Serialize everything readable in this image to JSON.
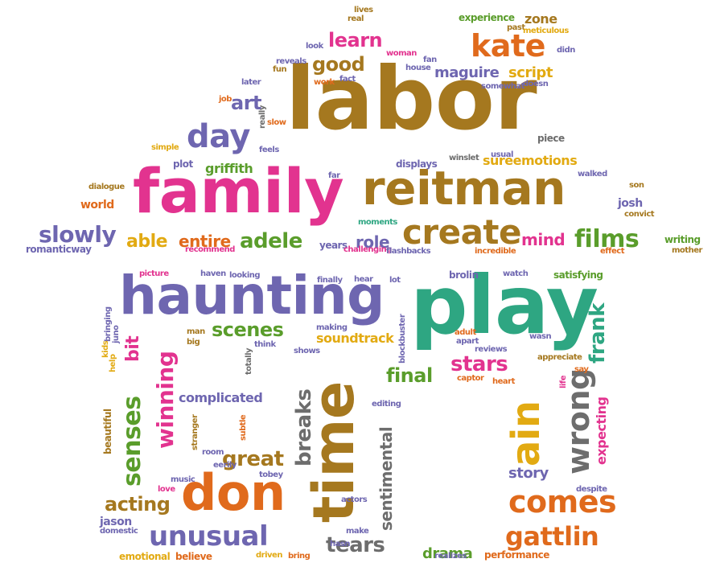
{
  "palette": {
    "brown": "#a5781f",
    "purple": "#6e66b0",
    "pink": "#e2338f",
    "green": "#5a9d2b",
    "orange": "#e06a1c",
    "yellow": "#e2aa12",
    "teal": "#2ea682",
    "gray": "#6d6d6d"
  },
  "words": [
    {
      "text": "labor",
      "color": "brown"
    },
    {
      "text": "family",
      "color": "pink"
    },
    {
      "text": "reitman",
      "color": "brown"
    },
    {
      "text": "play",
      "color": "teal"
    },
    {
      "text": "haunting",
      "color": "purple"
    },
    {
      "text": "time",
      "color": "brown"
    },
    {
      "text": "don",
      "color": "orange"
    },
    {
      "text": "create",
      "color": "brown"
    },
    {
      "text": "kate",
      "color": "orange"
    },
    {
      "text": "day",
      "color": "purple"
    },
    {
      "text": "slowly",
      "color": "purple"
    },
    {
      "text": "films",
      "color": "green"
    },
    {
      "text": "adele",
      "color": "green"
    },
    {
      "text": "entire",
      "color": "orange"
    },
    {
      "text": "able",
      "color": "yellow"
    },
    {
      "text": "role",
      "color": "purple"
    },
    {
      "text": "mind",
      "color": "pink"
    },
    {
      "text": "learn",
      "color": "pink"
    },
    {
      "text": "good",
      "color": "brown"
    },
    {
      "text": "maguire",
      "color": "purple"
    },
    {
      "text": "script",
      "color": "yellow"
    },
    {
      "text": "art",
      "color": "purple"
    },
    {
      "text": "griffith",
      "color": "green"
    },
    {
      "text": "sureemotions",
      "color": "yellow"
    },
    {
      "text": "world",
      "color": "orange"
    },
    {
      "text": "josh",
      "color": "purple"
    },
    {
      "text": "scenes",
      "color": "green"
    },
    {
      "text": "bit",
      "color": "pink"
    },
    {
      "text": "winning",
      "color": "pink"
    },
    {
      "text": "senses",
      "color": "green"
    },
    {
      "text": "soundtrack",
      "color": "yellow"
    },
    {
      "text": "final",
      "color": "green"
    },
    {
      "text": "stars",
      "color": "pink"
    },
    {
      "text": "complicated",
      "color": "purple"
    },
    {
      "text": "breaks",
      "color": "gray"
    },
    {
      "text": "sentimental",
      "color": "gray"
    },
    {
      "text": "great",
      "color": "brown"
    },
    {
      "text": "acting",
      "color": "brown"
    },
    {
      "text": "unusual",
      "color": "purple"
    },
    {
      "text": "tears",
      "color": "gray"
    },
    {
      "text": "drama",
      "color": "green"
    },
    {
      "text": "comes",
      "color": "orange"
    },
    {
      "text": "gattlin",
      "color": "orange"
    },
    {
      "text": "ain",
      "color": "yellow"
    },
    {
      "text": "wrong",
      "color": "gray"
    },
    {
      "text": "frank",
      "color": "teal"
    },
    {
      "text": "expecting",
      "color": "pink"
    },
    {
      "text": "story",
      "color": "purple"
    },
    {
      "text": "beautiful",
      "color": "brown"
    },
    {
      "text": "lives",
      "color": "brown"
    },
    {
      "text": "real",
      "color": "brown"
    },
    {
      "text": "look",
      "color": "purple"
    },
    {
      "text": "woman",
      "color": "pink"
    },
    {
      "text": "reveals",
      "color": "purple"
    },
    {
      "text": "fun",
      "color": "brown"
    },
    {
      "text": "later",
      "color": "purple"
    },
    {
      "text": "work",
      "color": "orange"
    },
    {
      "text": "fact",
      "color": "purple"
    },
    {
      "text": "fan",
      "color": "purple"
    },
    {
      "text": "house",
      "color": "purple"
    },
    {
      "text": "experience",
      "color": "green"
    },
    {
      "text": "zone",
      "color": "brown"
    },
    {
      "text": "past",
      "color": "brown"
    },
    {
      "text": "meticulous",
      "color": "yellow"
    },
    {
      "text": "didn",
      "color": "purple"
    },
    {
      "text": "somewhat",
      "color": "purple"
    },
    {
      "text": "doesn",
      "color": "purple"
    },
    {
      "text": "job",
      "color": "orange"
    },
    {
      "text": "really",
      "color": "gray"
    },
    {
      "text": "slow",
      "color": "orange"
    },
    {
      "text": "piece",
      "color": "gray"
    },
    {
      "text": "simple",
      "color": "yellow"
    },
    {
      "text": "feels",
      "color": "purple"
    },
    {
      "text": "winslet",
      "color": "gray"
    },
    {
      "text": "usual",
      "color": "purple"
    },
    {
      "text": "plot",
      "color": "purple"
    },
    {
      "text": "displays",
      "color": "purple"
    },
    {
      "text": "far",
      "color": "purple"
    },
    {
      "text": "walked",
      "color": "purple"
    },
    {
      "text": "son",
      "color": "brown"
    },
    {
      "text": "dialogue",
      "color": "brown"
    },
    {
      "text": "convict",
      "color": "brown"
    },
    {
      "text": "moments",
      "color": "teal"
    },
    {
      "text": "writing",
      "color": "green"
    },
    {
      "text": "years",
      "color": "purple"
    },
    {
      "text": "challenging",
      "color": "pink"
    },
    {
      "text": "flashbacks",
      "color": "purple"
    },
    {
      "text": "incredible",
      "color": "orange"
    },
    {
      "text": "effect",
      "color": "orange"
    },
    {
      "text": "mother",
      "color": "brown"
    },
    {
      "text": "romanticway",
      "color": "purple"
    },
    {
      "text": "recommend",
      "color": "pink"
    },
    {
      "text": "picture",
      "color": "pink"
    },
    {
      "text": "haven",
      "color": "purple"
    },
    {
      "text": "looking",
      "color": "purple"
    },
    {
      "text": "finally",
      "color": "purple"
    },
    {
      "text": "hear",
      "color": "purple"
    },
    {
      "text": "lot",
      "color": "purple"
    },
    {
      "text": "brolin",
      "color": "purple"
    },
    {
      "text": "watch",
      "color": "purple"
    },
    {
      "text": "satisfying",
      "color": "green"
    },
    {
      "text": "bringing",
      "color": "purple"
    },
    {
      "text": "making",
      "color": "purple"
    },
    {
      "text": "blockbuster",
      "color": "purple"
    },
    {
      "text": "adult",
      "color": "orange"
    },
    {
      "text": "apart",
      "color": "purple"
    },
    {
      "text": "wasn",
      "color": "purple"
    },
    {
      "text": "juno",
      "color": "purple"
    },
    {
      "text": "man",
      "color": "brown"
    },
    {
      "text": "big",
      "color": "brown"
    },
    {
      "text": "kids",
      "color": "yellow"
    },
    {
      "text": "help",
      "color": "yellow"
    },
    {
      "text": "think",
      "color": "purple"
    },
    {
      "text": "shows",
      "color": "purple"
    },
    {
      "text": "totally",
      "color": "gray"
    },
    {
      "text": "reviews",
      "color": "purple"
    },
    {
      "text": "appreciate",
      "color": "brown"
    },
    {
      "text": "say",
      "color": "orange"
    },
    {
      "text": "life",
      "color": "pink"
    },
    {
      "text": "captor",
      "color": "orange"
    },
    {
      "text": "heart",
      "color": "orange"
    },
    {
      "text": "editing",
      "color": "purple"
    },
    {
      "text": "stranger",
      "color": "brown"
    },
    {
      "text": "subtle",
      "color": "orange"
    },
    {
      "text": "room",
      "color": "purple"
    },
    {
      "text": "eerily",
      "color": "purple"
    },
    {
      "text": "tobey",
      "color": "purple"
    },
    {
      "text": "music",
      "color": "purple"
    },
    {
      "text": "love",
      "color": "pink"
    },
    {
      "text": "despite",
      "color": "purple"
    },
    {
      "text": "actors",
      "color": "purple"
    },
    {
      "text": "jason",
      "color": "purple"
    },
    {
      "text": "domestic",
      "color": "purple"
    },
    {
      "text": "hasn",
      "color": "purple"
    },
    {
      "text": "make",
      "color": "purple"
    },
    {
      "text": "emotional",
      "color": "yellow"
    },
    {
      "text": "believe",
      "color": "orange"
    },
    {
      "text": "driven",
      "color": "yellow"
    },
    {
      "text": "bring",
      "color": "orange"
    },
    {
      "text": "realizes",
      "color": "purple"
    },
    {
      "text": "performance",
      "color": "orange"
    }
  ]
}
